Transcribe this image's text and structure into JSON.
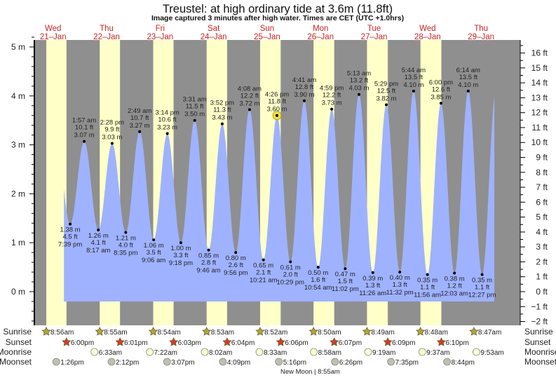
{
  "title": "Treustel: at high  ordinary tide at 3.6m (11.8ft)",
  "subtitle": "Image captured 3 minutes after high water. Times are CET (UTC +1.0hrs)",
  "colors": {
    "night": "#8f8f8f",
    "day": "#ffffc8",
    "tide": "#9fb2ff",
    "day_label": "#cc2222",
    "sunrise": "#b0a838",
    "sunset": "#d83a2a",
    "moonrise": "#ffffcc",
    "moonset": "#c0c0b0",
    "current_marker": "#f0e040"
  },
  "row_labels": {
    "sunrise": "Sunrise",
    "sunset": "Sunset",
    "moonrise": "Moonrise",
    "moonset": "Moonset"
  },
  "moon_phase": {
    "label": "New Moon | 8:55am"
  },
  "chart_data": {
    "type": "area",
    "title": "Treustel: at high  ordinary tide at 3.6m (11.8ft)",
    "left_axis": {
      "unit": "m",
      "range": [
        -0.6,
        5.2
      ],
      "ticks": [
        "0 m",
        "1 m",
        "2 m",
        "3 m",
        "4 m",
        "5 m"
      ]
    },
    "right_axis": {
      "unit": "ft",
      "ticks": [
        "−2 ft",
        "−1 ft",
        "0 ft",
        "1 ft",
        "2 ft",
        "3 ft",
        "4 ft",
        "5 ft",
        "6 ft",
        "7 ft",
        "8 ft",
        "9 ft",
        "10 ft",
        "11 ft",
        "12 ft",
        "13 ft",
        "14 ft",
        "15 ft",
        "16 ft"
      ]
    },
    "days": [
      {
        "weekday": "Wed",
        "date": "21–Jan",
        "sunrise": "8:56am",
        "sunset": "6:00pm",
        "moonrise": null,
        "moonset": "1:26pm"
      },
      {
        "weekday": "Thu",
        "date": "22–Jan",
        "sunrise": "8:55am",
        "sunset": "6:01pm",
        "moonrise": "6:33am",
        "moonset": "2:12pm"
      },
      {
        "weekday": "Fri",
        "date": "23–Jan",
        "sunrise": "8:54am",
        "sunset": "6:03pm",
        "moonrise": "7:22am",
        "moonset": "3:07pm"
      },
      {
        "weekday": "Sat",
        "date": "24–Jan",
        "sunrise": "8:53am",
        "sunset": "6:04pm",
        "moonrise": "8:02am",
        "moonset": "4:09pm"
      },
      {
        "weekday": "Sun",
        "date": "25–Jan",
        "sunrise": "8:52am",
        "sunset": "6:06pm",
        "moonrise": "8:33am",
        "moonset": "5:16pm"
      },
      {
        "weekday": "Mon",
        "date": "26–Jan",
        "sunrise": "8:50am",
        "sunset": "6:07pm",
        "moonrise": "8:58am",
        "moonset": "6:26pm"
      },
      {
        "weekday": "Tue",
        "date": "27–Jan",
        "sunrise": "8:49am",
        "sunset": "6:09pm",
        "moonrise": "9:19am",
        "moonset": "7:35pm"
      },
      {
        "weekday": "Wed",
        "date": "28–Jan",
        "sunrise": "8:48am",
        "sunset": "6:10pm",
        "moonrise": "9:37am",
        "moonset": "8:44pm"
      },
      {
        "weekday": "Thu",
        "date": "29–Jan",
        "sunrise": "8:47am",
        "sunset": null,
        "moonrise": "9:53am",
        "moonset": null
      }
    ],
    "tides": [
      {
        "day": 0,
        "time": "7:39 pm",
        "m": "1.38 m",
        "ft": "4.5 ft",
        "type": "low"
      },
      {
        "day": 1,
        "time": "1:57 am",
        "m": "3.07 m",
        "ft": "10.1 ft",
        "type": "high"
      },
      {
        "day": 1,
        "time": "8:17 am",
        "m": "1.26 m",
        "ft": "4.1 ft",
        "type": "low"
      },
      {
        "day": 1,
        "time": "2:28 pm",
        "m": "3.03 m",
        "ft": "9.9 ft",
        "type": "high"
      },
      {
        "day": 1,
        "time": "8:35 pm",
        "m": "1.21 m",
        "ft": "4.0 ft",
        "type": "low"
      },
      {
        "day": 2,
        "time": "2:49 am",
        "m": "3.27 m",
        "ft": "10.7 ft",
        "type": "high"
      },
      {
        "day": 2,
        "time": "9:06 am",
        "m": "1.06 m",
        "ft": "3.5 ft",
        "type": "low"
      },
      {
        "day": 2,
        "time": "3:14 pm",
        "m": "3.23 m",
        "ft": "10.6 ft",
        "type": "high"
      },
      {
        "day": 2,
        "time": "9:18 pm",
        "m": "1.00 m",
        "ft": "3.3 ft",
        "type": "low"
      },
      {
        "day": 3,
        "time": "3:31 am",
        "m": "3.50 m",
        "ft": "11.5 ft",
        "type": "high"
      },
      {
        "day": 3,
        "time": "9:46 am",
        "m": "0.85 m",
        "ft": "2.8 ft",
        "type": "low"
      },
      {
        "day": 3,
        "time": "3:52 pm",
        "m": "3.43 m",
        "ft": "11.3 ft",
        "type": "high"
      },
      {
        "day": 3,
        "time": "9:56 pm",
        "m": "0.80 m",
        "ft": "2.6 ft",
        "type": "low"
      },
      {
        "day": 4,
        "time": "4:08 am",
        "m": "3.72 m",
        "ft": "12.2 ft",
        "type": "high"
      },
      {
        "day": 4,
        "time": "10:21 am",
        "m": "0.65 m",
        "ft": "2.1 ft",
        "type": "low"
      },
      {
        "day": 4,
        "time": "4:26 pm",
        "m": "3.60 m",
        "ft": "11.8 ft",
        "type": "high",
        "current": true
      },
      {
        "day": 4,
        "time": "10:29 pm",
        "m": "0.61 m",
        "ft": "2.0 ft",
        "type": "low"
      },
      {
        "day": 5,
        "time": "4:41 am",
        "m": "3.90 m",
        "ft": "12.8 ft",
        "type": "high"
      },
      {
        "day": 5,
        "time": "10:54 am",
        "m": "0.50 m",
        "ft": "1.6 ft",
        "type": "low"
      },
      {
        "day": 5,
        "time": "4:59 pm",
        "m": "3.73 m",
        "ft": "12.2 ft",
        "type": "high"
      },
      {
        "day": 5,
        "time": "11:02 pm",
        "m": "0.47 m",
        "ft": "1.5 ft",
        "type": "low"
      },
      {
        "day": 6,
        "time": "5:13 am",
        "m": "4.03 m",
        "ft": "13.2 ft",
        "type": "high"
      },
      {
        "day": 6,
        "time": "11:26 am",
        "m": "0.39 m",
        "ft": "1.3 ft",
        "type": "low"
      },
      {
        "day": 6,
        "time": "5:29 pm",
        "m": "3.82 m",
        "ft": "12.5 ft",
        "type": "high"
      },
      {
        "day": 6,
        "time": "11:32 pm",
        "m": "0.40 m",
        "ft": "1.3 ft",
        "type": "low"
      },
      {
        "day": 7,
        "time": "5:44 am",
        "m": "4.10 m",
        "ft": "13.5 ft",
        "type": "high"
      },
      {
        "day": 7,
        "time": "11:56 am",
        "m": "0.35 m",
        "ft": "1.1 ft",
        "type": "low"
      },
      {
        "day": 7,
        "time": "6:00 pm",
        "m": "3.85 m",
        "ft": "12.6 ft",
        "type": "high"
      },
      {
        "day": 8,
        "time": "12:03 am",
        "m": "0.38 m",
        "ft": "1.2 ft",
        "type": "low"
      },
      {
        "day": 8,
        "time": "6:14 am",
        "m": "4.10 m",
        "ft": "13.5 ft",
        "type": "high"
      },
      {
        "day": 8,
        "time": "12:27 pm",
        "m": "0.35 m",
        "ft": "1.1 ft",
        "type": "low"
      }
    ]
  }
}
